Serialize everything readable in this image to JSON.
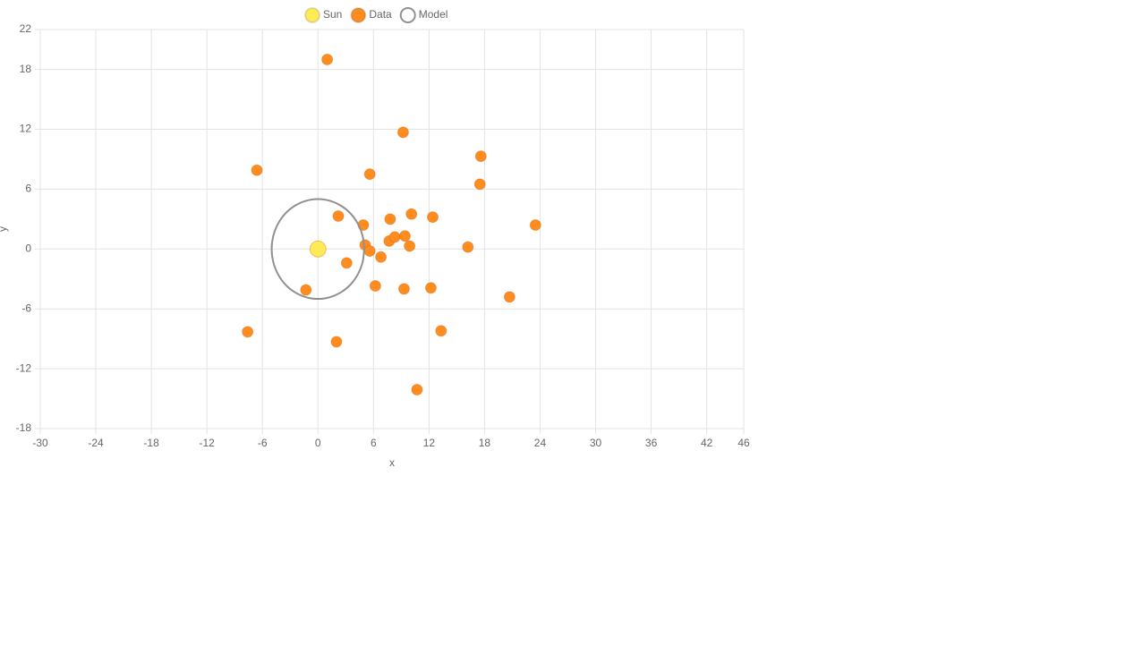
{
  "chart_data": {
    "type": "scatter",
    "x_label": "x",
    "y_label": "y",
    "xlim": [
      -30,
      46
    ],
    "xticks": [
      -30,
      -24,
      -18,
      -12,
      -6,
      0,
      6,
      12,
      18,
      24,
      30,
      36,
      42,
      46
    ],
    "ylim": [
      -18,
      22
    ],
    "yticks": [
      -18,
      -12,
      -6,
      0,
      6,
      12,
      18,
      22
    ],
    "grid": true,
    "legend": "top",
    "series": [
      {
        "name": "Sun",
        "color": "#ffeb55",
        "line": false,
        "x": [
          0
        ],
        "y": [
          0
        ]
      },
      {
        "name": "Data",
        "color": "#ff8c1f",
        "line": false,
        "x": [
          1.0,
          9.2,
          17.6,
          -6.6,
          5.6,
          17.5,
          2.2,
          4.9,
          7.8,
          10.1,
          12.4,
          23.5,
          5.1,
          5.6,
          7.7,
          8.3,
          9.4,
          9.9,
          16.2,
          6.8,
          3.1,
          6.2,
          -1.3,
          9.3,
          12.2,
          20.7,
          -7.6,
          2.0,
          13.3,
          10.7
        ],
        "y": [
          19.0,
          11.7,
          9.3,
          7.9,
          7.5,
          6.5,
          3.3,
          2.4,
          3.0,
          3.5,
          3.2,
          2.4,
          0.4,
          -0.2,
          0.8,
          1.2,
          1.3,
          0.3,
          0.2,
          -0.8,
          -1.4,
          -3.7,
          -4.1,
          -4.0,
          -3.9,
          -4.8,
          -8.3,
          -9.3,
          -8.2,
          -14.1
        ]
      },
      {
        "name": "Model",
        "color": "#909090",
        "line": true,
        "x": [
          5,
          4.83,
          4.33,
          3.54,
          2.5,
          1.29,
          0,
          -1.29,
          -2.5,
          -3.54,
          -4.33,
          -4.83,
          -5,
          -4.83,
          -4.33,
          -3.54,
          -2.5,
          -1.29,
          0,
          1.29,
          2.5,
          3.54,
          4.33,
          4.83,
          5
        ],
        "y": [
          0,
          1.29,
          2.5,
          3.54,
          4.33,
          4.83,
          5,
          4.83,
          4.33,
          3.54,
          2.5,
          1.29,
          0,
          -1.29,
          -2.5,
          -3.54,
          -4.33,
          -4.83,
          -5,
          -4.83,
          -4.33,
          -3.54,
          -2.5,
          -1.29,
          0
        ]
      }
    ]
  }
}
